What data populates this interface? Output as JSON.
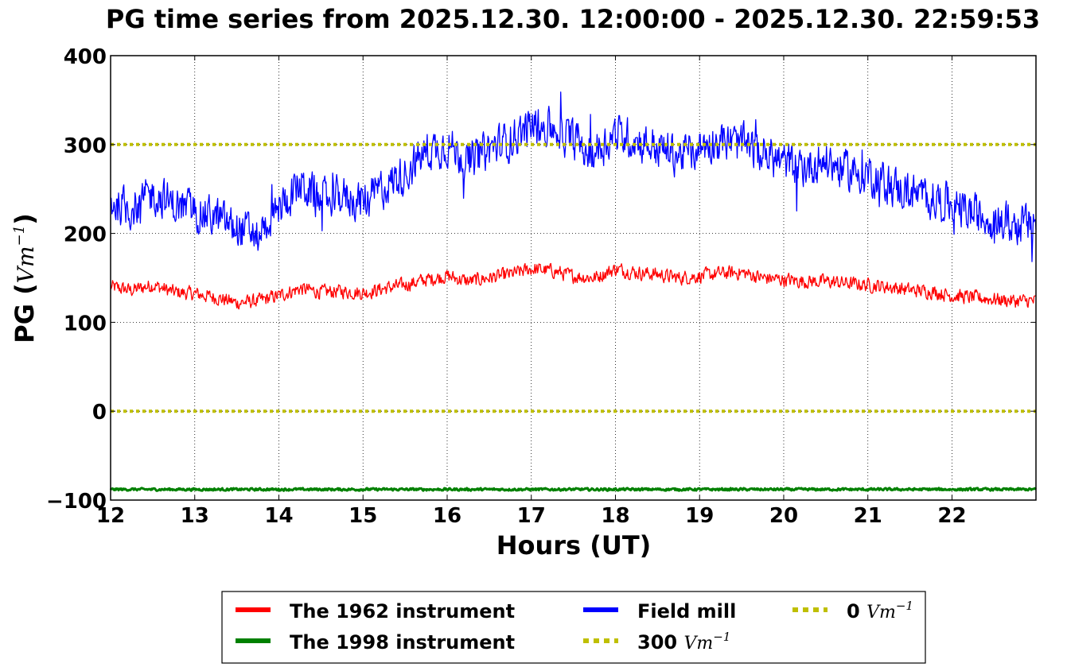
{
  "chart_data": {
    "type": "line",
    "title": "PG time series from 2025.12.30. 12:00:00 - 2025.12.30. 22:59:53",
    "xlabel": "Hours (UT)",
    "ylabel": "PG (",
    "ylabel_unit": "Vm",
    "ylabel_exp": "−1",
    "ylabel_close": ")",
    "xlim": [
      12,
      22.998
    ],
    "ylim": [
      -100,
      400
    ],
    "x_ticks": [
      12,
      13,
      14,
      15,
      16,
      17,
      18,
      19,
      20,
      21,
      22
    ],
    "y_ticks": [
      -100,
      0,
      100,
      200,
      300,
      400
    ],
    "y_tick_labels": [
      "−100",
      "0",
      "100",
      "200",
      "300",
      "400"
    ],
    "grid": true,
    "legend_placement": "below plot, 3 columns",
    "series": [
      {
        "name": "The 1962 instrument",
        "color": "#ff0000",
        "style": "solid",
        "x": [
          12,
          12.25,
          12.5,
          12.75,
          13,
          13.25,
          13.5,
          13.75,
          14,
          14.25,
          14.5,
          14.75,
          15,
          15.25,
          15.5,
          15.75,
          16,
          16.25,
          16.5,
          16.75,
          17,
          17.25,
          17.5,
          17.75,
          18,
          18.25,
          18.5,
          18.75,
          19,
          19.25,
          19.5,
          19.75,
          20,
          20.25,
          20.5,
          20.75,
          21,
          21.25,
          21.5,
          21.75,
          22,
          22.25,
          22.5,
          22.75,
          23
        ],
        "y": [
          140,
          136,
          142,
          134,
          132,
          128,
          122,
          124,
          130,
          138,
          134,
          135,
          133,
          138,
          142,
          148,
          152,
          146,
          150,
          154,
          160,
          158,
          152,
          150,
          160,
          156,
          154,
          150,
          152,
          155,
          156,
          150,
          148,
          146,
          146,
          144,
          142,
          140,
          136,
          135,
          130,
          128,
          126,
          124,
          124
        ],
        "noise": 7
      },
      {
        "name": "The 1998 instrument",
        "color": "#008000",
        "style": "solid",
        "x": [
          12,
          13,
          14,
          15,
          16,
          17,
          18,
          19,
          20,
          21,
          22,
          23
        ],
        "y": [
          -88,
          -88,
          -88,
          -88,
          -88,
          -88,
          -88,
          -88,
          -88,
          -88,
          -88,
          -88
        ],
        "noise": 1.2
      },
      {
        "name": "Field mill",
        "color": "#0000ff",
        "style": "solid",
        "x": [
          12,
          12.25,
          12.5,
          12.75,
          13,
          13.25,
          13.5,
          13.75,
          14,
          14.25,
          14.5,
          14.75,
          15,
          15.25,
          15.5,
          15.75,
          16,
          16.25,
          16.5,
          16.75,
          17,
          17.25,
          17.5,
          17.75,
          18,
          18.25,
          18.5,
          18.75,
          19,
          19.25,
          19.5,
          19.75,
          20,
          20.25,
          20.5,
          20.75,
          21,
          21.25,
          21.5,
          21.75,
          22,
          22.25,
          22.5,
          22.75,
          23
        ],
        "y": [
          235,
          228,
          245,
          232,
          225,
          218,
          205,
          200,
          228,
          255,
          238,
          242,
          236,
          252,
          268,
          292,
          300,
          282,
          295,
          305,
          322,
          318,
          306,
          292,
          312,
          305,
          296,
          288,
          298,
          305,
          300,
          290,
          280,
          275,
          282,
          270,
          268,
          255,
          245,
          240,
          232,
          222,
          215,
          210,
          210
        ],
        "noise": 20
      },
      {
        "name": "300",
        "name_unit": "Vm",
        "name_exp": "−1",
        "color": "#bfbf00",
        "style": "dotted",
        "x": [
          12,
          23
        ],
        "y": [
          300,
          300
        ]
      },
      {
        "name": "0",
        "name_unit": "Vm",
        "name_exp": "−1",
        "color": "#bfbf00",
        "style": "dotted",
        "x": [
          12,
          23
        ],
        "y": [
          0,
          0
        ]
      }
    ]
  }
}
